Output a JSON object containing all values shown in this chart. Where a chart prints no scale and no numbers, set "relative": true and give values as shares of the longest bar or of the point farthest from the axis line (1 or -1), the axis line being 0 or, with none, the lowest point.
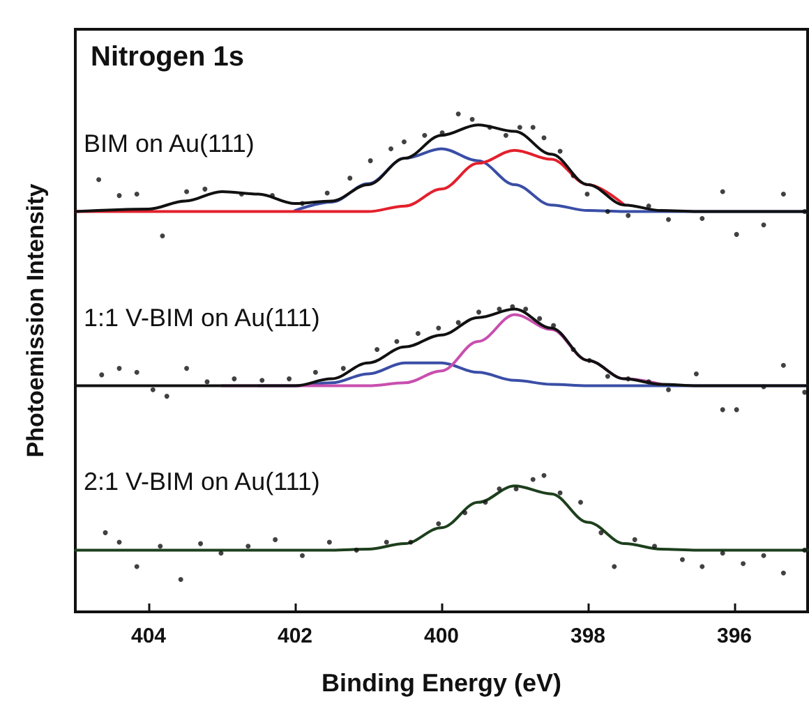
{
  "chart_data": {
    "type": "line",
    "title": "Nitrogen 1s",
    "xlabel": "Binding Energy (eV)",
    "ylabel": "Photoemission Intensity",
    "relative": true,
    "xlim": [
      405,
      395
    ],
    "xticks": [
      404,
      402,
      400,
      398,
      396
    ],
    "grid": false,
    "legend": false,
    "marker": "none",
    "line_style": "solid",
    "x": [
      405,
      404,
      403.5,
      403,
      402.5,
      402,
      401.5,
      401,
      400.5,
      400,
      399.5,
      399,
      398.5,
      398,
      397.5,
      397,
      396.5,
      396,
      395
    ],
    "series": [
      {
        "name": "BIM on Au(111)",
        "color": "#111111",
        "values": [
          0.804,
          0.809,
          0.825,
          0.844,
          0.839,
          0.82,
          0.825,
          0.858,
          0.911,
          0.957,
          0.978,
          0.965,
          0.919,
          0.858,
          0.817,
          0.806,
          0.804,
          0.804,
          0.804
        ]
      },
      {
        "color": "#3a4ea6",
        "values": [
          null,
          null,
          null,
          null,
          null,
          0.806,
          0.823,
          0.86,
          0.911,
          0.93,
          0.906,
          0.858,
          0.817,
          0.806,
          0.804,
          0.804,
          0.804,
          0.804,
          0.804
        ]
      },
      {
        "color": "#e3202c",
        "values": [
          0.804,
          0.804,
          0.804,
          0.804,
          0.804,
          0.804,
          0.804,
          0.804,
          0.815,
          0.849,
          0.901,
          0.927,
          0.909,
          0.858,
          0.817,
          null,
          null,
          null,
          null
        ]
      },
      {
        "name": "1:1 V-BIM on Au(111)",
        "color": "#111111",
        "values": [
          0.454,
          0.454,
          0.454,
          0.454,
          0.454,
          0.454,
          0.468,
          0.5,
          0.532,
          0.556,
          0.591,
          0.608,
          0.57,
          0.505,
          0.468,
          0.457,
          0.454,
          0.454,
          0.454
        ]
      },
      {
        "color": "#3a4ea6",
        "values": [
          null,
          null,
          null,
          null,
          0.454,
          0.454,
          0.46,
          0.478,
          0.5,
          0.5,
          0.481,
          0.465,
          0.457,
          0.454,
          0.454,
          0.454,
          0.454,
          0.454,
          0.454
        ]
      },
      {
        "color": "#c84fae",
        "values": [
          null,
          null,
          null,
          0.454,
          0.454,
          0.454,
          0.454,
          0.454,
          0.46,
          0.484,
          0.543,
          0.597,
          0.567,
          0.505,
          0.468,
          0.457,
          null,
          null,
          null
        ]
      },
      {
        "name": "2:1 V-BIM on Au(111)",
        "color": "#1d3f1d",
        "values": [
          0.124,
          0.124,
          0.124,
          0.124,
          0.124,
          0.124,
          0.124,
          0.126,
          0.137,
          0.169,
          0.22,
          0.253,
          0.237,
          0.18,
          0.137,
          0.126,
          0.124,
          0.124,
          0.124
        ]
      },
      {
        "type": "scatter",
        "marker": "circle",
        "color": "#111111",
        "x": [
          404.68,
          404.4,
          404.16,
          403.81,
          403.48,
          403.23,
          402.73,
          402.31,
          401.9,
          401.56,
          401.25,
          400.97,
          400.69,
          400.51,
          400.23,
          399.99,
          399.77,
          399.58,
          399.34,
          399.12,
          398.93,
          398.75,
          398.6,
          398.38,
          398.2,
          398.01,
          397.73,
          397.45,
          397.17,
          396.9,
          396.44,
          396.16,
          395.97,
          395.6,
          395.33,
          395.04,
          404.64,
          404.4,
          404.16,
          403.94,
          403.75,
          403.48,
          403.2,
          402.83,
          402.45,
          402.08,
          401.72,
          401.34,
          400.88,
          400.61,
          400.32,
          400.04,
          399.77,
          399.49,
          399.21,
          399.03,
          398.85,
          398.66,
          398.47,
          398.2,
          397.98,
          397.73,
          397.45,
          397.17,
          396.9,
          396.52,
          396.16,
          395.97,
          395.6,
          395.33,
          395.04,
          404.59,
          404.4,
          404.16,
          403.84,
          403.56,
          403.29,
          403.01,
          402.64,
          402.27,
          401.9,
          401.53,
          401.16,
          400.75,
          400.42,
          400.04,
          399.68,
          399.4,
          399.21,
          398.98,
          398.75,
          398.6,
          398.38,
          398.1,
          397.82,
          397.64,
          397.36,
          397.09,
          396.71,
          396.44,
          396.16,
          395.88,
          395.6,
          395.33,
          395.04
        ],
        "values": [
          0.868,
          0.836,
          0.839,
          0.755,
          0.844,
          0.849,
          0.839,
          0.836,
          0.82,
          0.841,
          0.871,
          0.906,
          0.93,
          0.944,
          0.957,
          0.962,
          1.0,
          0.989,
          0.973,
          0.957,
          0.973,
          0.973,
          0.952,
          0.925,
          0.876,
          0.839,
          0.804,
          0.796,
          0.815,
          0.788,
          0.79,
          0.844,
          0.758,
          0.777,
          0.839,
          0.804,
          0.476,
          0.489,
          0.481,
          0.446,
          0.433,
          0.489,
          0.462,
          0.468,
          0.465,
          0.468,
          0.481,
          0.489,
          0.527,
          0.543,
          0.559,
          0.57,
          0.581,
          0.602,
          0.608,
          0.613,
          0.608,
          0.589,
          0.575,
          0.527,
          0.505,
          0.473,
          0.468,
          0.462,
          0.446,
          0.478,
          0.406,
          0.406,
          0.452,
          0.495,
          0.441,
          0.159,
          0.14,
          0.091,
          0.132,
          0.065,
          0.137,
          0.118,
          0.132,
          0.145,
          0.113,
          0.14,
          0.124,
          0.14,
          0.14,
          0.177,
          0.199,
          0.22,
          0.247,
          0.247,
          0.266,
          0.274,
          0.239,
          0.22,
          0.159,
          0.091,
          0.145,
          0.132,
          0.105,
          0.091,
          0.118,
          0.097,
          0.113,
          0.078,
          0.124
        ]
      }
    ]
  }
}
